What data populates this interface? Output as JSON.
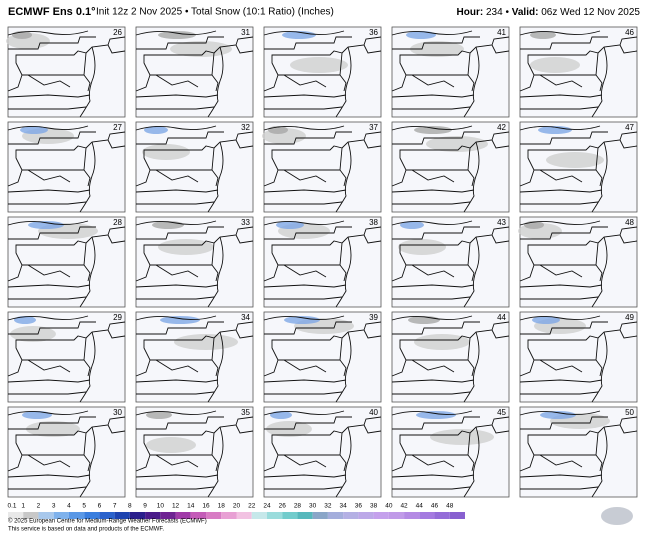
{
  "header": {
    "model": "ECMWF Ens 0.1°",
    "run": "Init 12z 2 Nov 2025 • Total Snow (10:1 Ratio) (Inches)",
    "hour_label": "Hour:",
    "hour": 234,
    "valid_label": "Valid:",
    "valid": "06z Wed 12 Nov 2025"
  },
  "panels": [
    26,
    27,
    28,
    29,
    30,
    31,
    32,
    33,
    34,
    35,
    36,
    37,
    38,
    39,
    40,
    41,
    42,
    43,
    44,
    45,
    46,
    47,
    48,
    49,
    50
  ],
  "colorbar": {
    "ticks": [
      0.1,
      1,
      2,
      3,
      4,
      5,
      6,
      7,
      8,
      9,
      10,
      12,
      14,
      16,
      18,
      20,
      22,
      24,
      26,
      28,
      30,
      32,
      34,
      36,
      38,
      40,
      42,
      44,
      46,
      48
    ],
    "colors": [
      "#e8e8e8",
      "#c8c8c8",
      "#a8c8ec",
      "#7fb2ec",
      "#5a98e6",
      "#3a7ede",
      "#2a62cc",
      "#1e44b0",
      "#2a1f8c",
      "#4a1b8a",
      "#6e2392",
      "#a03aa8",
      "#c45cb8",
      "#d87cc4",
      "#e8a0d4",
      "#f2c2e2",
      "#c6e8ea",
      "#9adcdc",
      "#72cccc",
      "#56b8bc",
      "#8aa6c8",
      "#a4aedc",
      "#b4b0e4",
      "#bca8e8",
      "#c4a0ec",
      "#c09ae8",
      "#b48ae4",
      "#a47ae0",
      "#946cd8",
      "#8860d0"
    ]
  },
  "footer": {
    "copyright": "© 2025 European Centre for Medium-Range Weather Forecasts (ECMWF)",
    "note": "This service is based on data and products of the ECMWF."
  }
}
